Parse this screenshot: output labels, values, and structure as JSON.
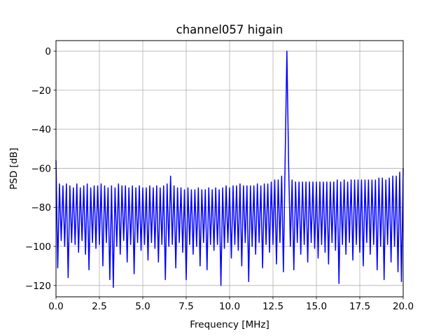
{
  "chart_data": {
    "type": "line",
    "title": "channel057 higain",
    "xlabel": "Frequency [MHz]",
    "ylabel": "PSD [dB]",
    "color": "#0000ff",
    "grid": true,
    "xlim": [
      0,
      20
    ],
    "ylim": [
      -125.8,
      5.4
    ],
    "xticks": [
      {
        "value": 0,
        "label": "0.0"
      },
      2.5,
      {
        "value": 5,
        "label": "5.0"
      },
      7.5,
      {
        "value": 10,
        "label": "10.0"
      },
      12.5,
      {
        "value": 15,
        "label": "15.0"
      },
      17.5,
      {
        "value": 20,
        "label": "20.0"
      }
    ],
    "yticks": [
      0,
      {
        "value": -20,
        "label": "−20"
      },
      {
        "value": -40,
        "label": "−40"
      },
      {
        "value": -60,
        "label": "−60"
      },
      {
        "value": -80,
        "label": "−80"
      },
      {
        "value": -100,
        "label": "−100"
      },
      {
        "value": -120,
        "label": "−120"
      }
    ],
    "x": [
      0,
      0.1,
      0.2,
      0.3,
      0.4,
      0.5,
      0.6,
      0.7,
      0.8,
      0.9,
      1,
      1.1,
      1.2,
      1.3,
      1.4,
      1.5,
      1.6,
      1.7,
      1.8,
      1.9,
      2,
      2.1,
      2.2,
      2.3,
      2.4,
      2.5,
      2.6,
      2.7,
      2.8,
      2.9,
      3,
      3.1,
      3.2,
      3.3,
      3.4,
      3.5,
      3.6,
      3.7,
      3.8,
      3.9,
      4,
      4.1,
      4.2,
      4.3,
      4.4,
      4.5,
      4.6,
      4.7,
      4.8,
      4.9,
      5,
      5.1,
      5.2,
      5.3,
      5.4,
      5.5,
      5.6,
      5.7,
      5.8,
      5.9,
      6,
      6.1,
      6.2,
      6.3,
      6.4,
      6.5,
      6.6,
      6.7,
      6.8,
      6.9,
      7,
      7.1,
      7.2,
      7.3,
      7.4,
      7.5,
      7.6,
      7.7,
      7.8,
      7.9,
      8,
      8.1,
      8.2,
      8.3,
      8.4,
      8.5,
      8.6,
      8.7,
      8.8,
      8.9,
      9,
      9.1,
      9.2,
      9.3,
      9.4,
      9.5,
      9.6,
      9.7,
      9.8,
      9.9,
      10,
      10.1,
      10.2,
      10.3,
      10.4,
      10.5,
      10.6,
      10.7,
      10.8,
      10.9,
      11,
      11.1,
      11.2,
      11.3,
      11.4,
      11.5,
      11.6,
      11.7,
      11.8,
      11.9,
      12,
      12.1,
      12.2,
      12.3,
      12.4,
      12.5,
      12.6,
      12.7,
      12.8,
      12.9,
      13,
      13.1,
      13.2,
      13.3,
      13.4,
      13.5,
      13.6,
      13.7,
      13.8,
      13.9,
      14,
      14.1,
      14.2,
      14.3,
      14.4,
      14.5,
      14.6,
      14.7,
      14.8,
      14.9,
      15,
      15.1,
      15.2,
      15.3,
      15.4,
      15.5,
      15.6,
      15.7,
      15.8,
      15.9,
      16,
      16.1,
      16.2,
      16.3,
      16.4,
      16.5,
      16.6,
      16.7,
      16.8,
      16.9,
      17,
      17.1,
      17.2,
      17.3,
      17.4,
      17.5,
      17.6,
      17.7,
      17.8,
      17.9,
      18,
      18.1,
      18.2,
      18.3,
      18.4,
      18.5,
      18.6,
      18.7,
      18.8,
      18.9,
      19,
      19.1,
      19.2,
      19.3,
      19.4,
      19.5,
      19.6,
      19.7,
      19.8,
      19.9,
      20
    ],
    "values": [
      -56,
      -111,
      -68,
      -97,
      -69,
      -100,
      -68,
      -116,
      -69,
      -98,
      -70,
      -99,
      -68,
      -103,
      -70,
      -97,
      -69,
      -104,
      -68,
      -112,
      -70,
      -98,
      -69,
      -101,
      -69,
      -99,
      -68,
      -110,
      -69,
      -98,
      -70,
      -117,
      -69,
      -121,
      -70,
      -100,
      -68,
      -104,
      -69,
      -97,
      -69,
      -108,
      -70,
      -99,
      -69,
      -114,
      -70,
      -98,
      -69,
      -102,
      -70,
      -99,
      -70,
      -107,
      -69,
      -98,
      -70,
      -101,
      -69,
      -108,
      -70,
      -99,
      -69,
      -117,
      -68,
      -100,
      -64,
      -99,
      -69,
      -111,
      -70,
      -98,
      -70,
      -103,
      -71,
      -117,
      -70,
      -99,
      -71,
      -104,
      -71,
      -100,
      -70,
      -110,
      -71,
      -98,
      -71,
      -112,
      -70,
      -99,
      -71,
      -102,
      -70,
      -99,
      -71,
      -120,
      -70,
      -101,
      -69,
      -98,
      -70,
      -106,
      -69,
      -99,
      -69,
      -102,
      -68,
      -110,
      -69,
      -98,
      -69,
      -118,
      -69,
      -100,
      -69,
      -104,
      -68,
      -98,
      -69,
      -111,
      -68,
      -99,
      -68,
      -103,
      -67,
      -99,
      -66,
      -109,
      -66,
      -98,
      -64,
      -113,
      -55,
      0,
      -58,
      -100,
      -66,
      -112,
      -67,
      -98,
      -67,
      -104,
      -67,
      -99,
      -67,
      -108,
      -67,
      -98,
      -67,
      -101,
      -67,
      -106,
      -67,
      -99,
      -67,
      -103,
      -67,
      -109,
      -67,
      -98,
      -67,
      -102,
      -66,
      -119,
      -67,
      -99,
      -66,
      -104,
      -67,
      -98,
      -66,
      -107,
      -66,
      -99,
      -66,
      -103,
      -66,
      -110,
      -66,
      -98,
      -66,
      -104,
      -66,
      -99,
      -66,
      -112,
      -65,
      -100,
      -65,
      -117,
      -66,
      -99,
      -65,
      -108,
      -64,
      -100,
      -64,
      -113,
      -62,
      -118,
      -60
    ]
  }
}
